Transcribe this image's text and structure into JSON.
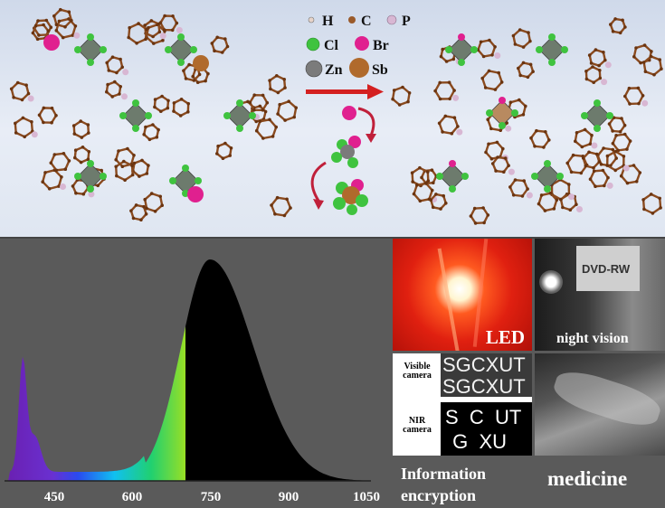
{
  "legend": {
    "h": "H",
    "c": "C",
    "p": "P",
    "cl": "Cl",
    "br": "Br",
    "zn": "Zn",
    "sb": "Sb"
  },
  "colors": {
    "h": "#e6d3c9",
    "c": "#9a5a2a",
    "p": "#d8b7d3",
    "cl": "#3fc33f",
    "br": "#e0208f",
    "zn": "#7b7b7b",
    "sb": "#b06a2c",
    "arrow": "#d42020"
  },
  "spectrum": {
    "ticks": [
      "450",
      "600",
      "750",
      "900",
      "1050"
    ]
  },
  "panels": {
    "led_label": "LED",
    "night_label": "night vision",
    "visible_camera": "Visible camera",
    "nir_camera": "NIR camera",
    "visible_line1": "SGCXUT",
    "visible_line2": "SGCXUT",
    "nir_line1": "S  C  UT",
    "nir_line2": " G  XU",
    "info_line1": "Information",
    "info_line2": "encryption",
    "medicine": "medicine"
  }
}
